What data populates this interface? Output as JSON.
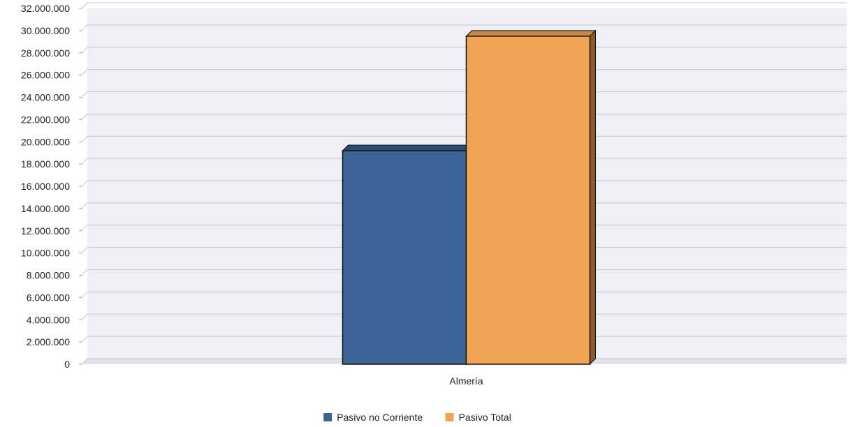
{
  "chart_data": {
    "type": "bar",
    "title": "",
    "xlabel": "",
    "ylabel": "",
    "categories": [
      "Almería"
    ],
    "series": [
      {
        "name": "Pasivo no Corriente",
        "values": [
          19200000
        ],
        "color": "#3a6496",
        "side_color": "#233d5c",
        "top_color": "#2c4d75"
      },
      {
        "name": "Pasivo Total",
        "values": [
          29500000
        ],
        "color": "#f0a456",
        "side_color": "#8a5a2c",
        "top_color": "#c98a48"
      }
    ],
    "ylim": [
      0,
      32000000
    ],
    "y_ticks": [
      "0",
      "2.000.000",
      "4.000.000",
      "6.000.000",
      "8.000.000",
      "10.000.000",
      "12.000.000",
      "14.000.000",
      "16.000.000",
      "18.000.000",
      "20.000.000",
      "22.000.000",
      "24.000.000",
      "26.000.000",
      "28.000.000",
      "30.000.000",
      "32.000.000"
    ],
    "grid": true,
    "legend_position": "bottom",
    "plot_background": "#efeff5",
    "grid_color": "#c7c7da"
  }
}
